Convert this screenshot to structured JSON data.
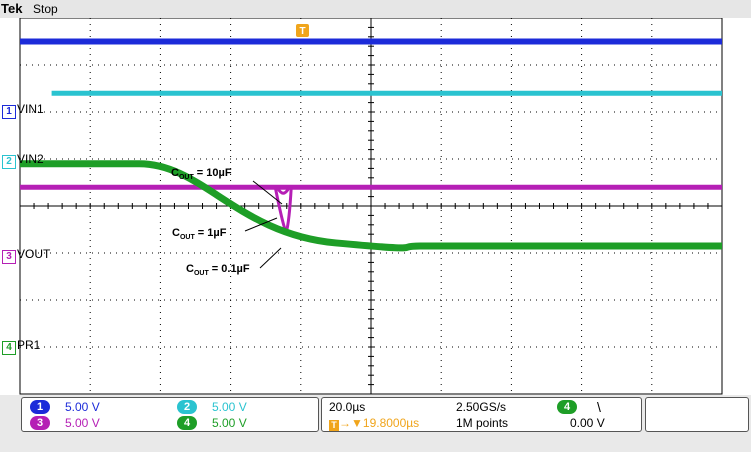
{
  "header": {
    "brand": "Tek",
    "state": "Stop",
    "trigger_marker": "T"
  },
  "channels": [
    {
      "id": "1",
      "label": "VIN1",
      "color": "#1c2bd9",
      "trace_level_div": 0.5
    },
    {
      "id": "2",
      "label": "VIN2",
      "color": "#2ac3d0",
      "trace_level_div": 1.6
    },
    {
      "id": "3",
      "label": "VOUT",
      "color": "#b51fb5",
      "trace_level_div": 3.6
    },
    {
      "id": "4",
      "label": "PR1",
      "color": "#1e9e27",
      "trace_level_div": 4.85
    }
  ],
  "annotations": [
    {
      "prefix": "C",
      "sub": "OUT",
      "value": " = 10µF"
    },
    {
      "prefix": "C",
      "sub": "OUT",
      "value": " = 1µF"
    },
    {
      "prefix": "C",
      "sub": "OUT",
      "value": " = 0.1µF"
    }
  ],
  "status": {
    "ch1_scale": "5.00 V",
    "ch2_scale": "5.00 V",
    "ch3_scale": "5.00 V",
    "ch4_scale": "5.00 V",
    "timebase": "20.0µs",
    "sample_rate": "2.50GS/s",
    "trigger_position": "19.8000µs",
    "record_length": "1M points",
    "trigger_source": "4",
    "trigger_slope": "\\",
    "trigger_level": "0.00 V"
  }
}
